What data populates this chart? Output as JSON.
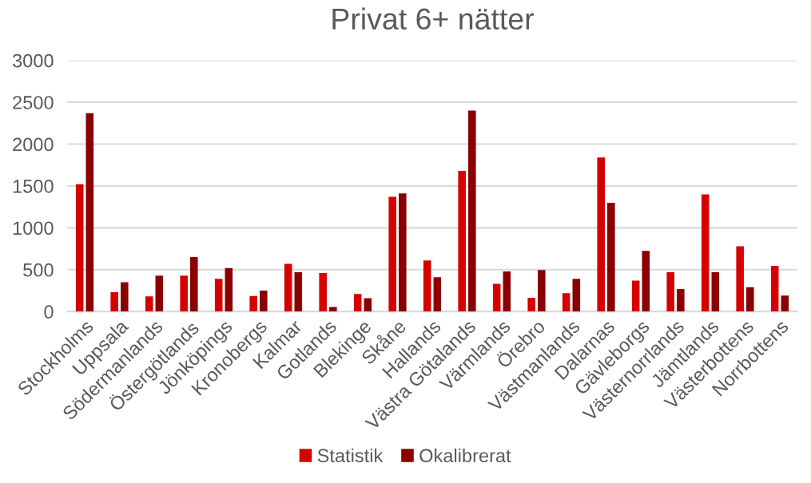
{
  "chart_data": {
    "type": "bar",
    "title": "Privat 6+ nätter",
    "categories": [
      "Stockholms",
      "Uppsala",
      "Södermanlands",
      "Östergötlands",
      "Jönköpings",
      "Kronobergs",
      "Kalmar",
      "Gotlands",
      "Blekinge",
      "Skåne",
      "Hallands",
      "Västra Götalands",
      "Värmlands",
      "Örebro",
      "Västmanlands",
      "Dalarnas",
      "Gävleborgs",
      "Västernorrlands",
      "Jämtlands",
      "Västerbottens",
      "Norrbottens"
    ],
    "series": [
      {
        "name": "Statistik",
        "color": "#d60000",
        "values": [
          1520,
          230,
          180,
          430,
          390,
          185,
          570,
          460,
          210,
          1370,
          610,
          1680,
          330,
          165,
          220,
          1840,
          370,
          470,
          1400,
          780,
          545
        ]
      },
      {
        "name": "Okalibrerat",
        "color": "#8b0000",
        "values": [
          2370,
          350,
          430,
          650,
          520,
          250,
          470,
          55,
          160,
          1410,
          410,
          2400,
          480,
          495,
          390,
          1300,
          725,
          270,
          470,
          290,
          190
        ]
      }
    ],
    "ylim": [
      0,
      3000
    ],
    "yticks": [
      0,
      500,
      1000,
      1500,
      2000,
      2500,
      3000
    ],
    "grid": "y",
    "legend": "bottom"
  }
}
